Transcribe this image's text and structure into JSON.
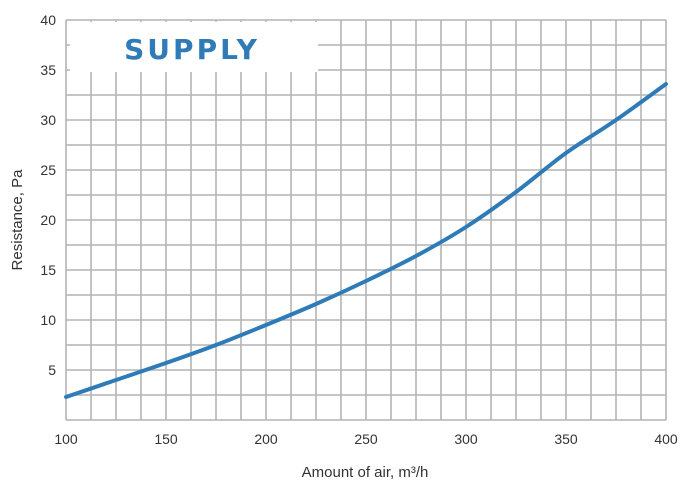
{
  "chart_data": {
    "type": "line",
    "title": "SUPPLY",
    "xlabel": "Amount of air, m³/h",
    "ylabel": "Resistance, Pa",
    "xlim": [
      100,
      400
    ],
    "ylim": [
      0,
      40
    ],
    "x_ticks": [
      "100",
      "150",
      "200",
      "250",
      "300",
      "350",
      "400"
    ],
    "y_ticks": [
      "5",
      "10",
      "15",
      "20",
      "25",
      "30",
      "35",
      "40"
    ],
    "grid": true,
    "line_color": "#2e7bb8",
    "title_color": "#2e7bb8",
    "series": [
      {
        "x": [
          100,
          125,
          150,
          175,
          200,
          225,
          250,
          275,
          300,
          325,
          350,
          375,
          400
        ],
        "values": [
          2.3,
          4.0,
          5.7,
          7.5,
          9.5,
          11.6,
          13.9,
          16.4,
          19.3,
          22.8,
          26.7,
          30.0,
          33.6
        ]
      }
    ]
  }
}
